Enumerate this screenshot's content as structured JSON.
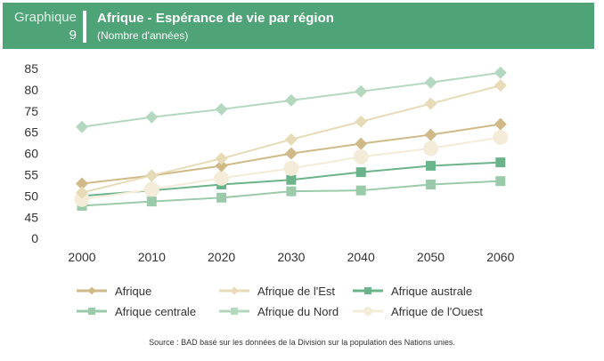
{
  "header": {
    "label": "Graphique",
    "number": "9",
    "title": "Afrique - Espérance de vie par région",
    "subtitle": "(Nombre d'années)",
    "color": "#4ea377"
  },
  "chart_data": {
    "type": "line",
    "title": "Afrique - Espérance de vie par région",
    "subtitle": "(Nombre d'années)",
    "xlabel": "",
    "ylabel": "",
    "x": [
      "2000",
      "2010",
      "2020",
      "2030",
      "2040",
      "2050",
      "2060"
    ],
    "y_tick_labels": [
      "0",
      "45",
      "50",
      "55",
      "60",
      "65",
      "75",
      "80",
      "85"
    ],
    "grid": false,
    "legend_position": "bottom",
    "series": [
      {
        "name": "Afrique",
        "marker": "diamond",
        "color": "#cfb987",
        "values": [
          52.9,
          54.8,
          57.1,
          60.0,
          62.3,
          64.4,
          68.8
        ]
      },
      {
        "name": "Afrique de l'Est",
        "marker": "diamond",
        "color": "#e7dbb7",
        "values": [
          50.8,
          54.8,
          58.8,
          63.3,
          70.0,
          76.7,
          81.0
        ]
      },
      {
        "name": "Afrique australe",
        "marker": "square",
        "color": "#6bb48b",
        "values": [
          50.0,
          51.3,
          52.7,
          53.8,
          55.6,
          57.1,
          57.9
        ]
      },
      {
        "name": "Afrique centrale",
        "marker": "square",
        "color": "#9acaaa",
        "values": [
          47.7,
          48.7,
          49.6,
          51.1,
          51.3,
          52.7,
          53.5
        ]
      },
      {
        "name": "Afrique du Nord",
        "marker": "diamond",
        "legend_marker": "square",
        "color": "#b4d8bf",
        "values": [
          67.5,
          72.1,
          75.4,
          77.5,
          79.6,
          81.7,
          84.0
        ]
      },
      {
        "name": "Afrique de l'Ouest",
        "marker": "circle",
        "color": "#f4ecd9",
        "values": [
          49.2,
          51.6,
          54.2,
          56.5,
          59.2,
          61.2,
          63.8
        ]
      }
    ]
  },
  "source": "Source : BAD basé sur les données de la Division sur la population des Nations unies."
}
